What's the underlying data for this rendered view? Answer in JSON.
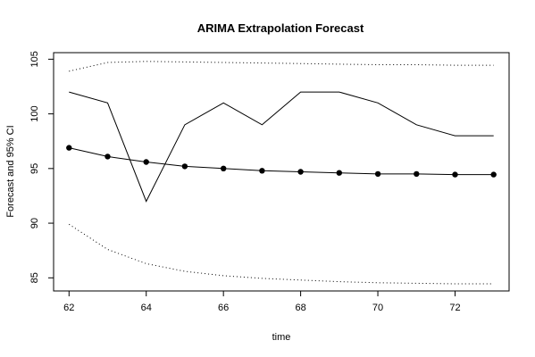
{
  "chart_data": {
    "type": "line",
    "title": "ARIMA Extrapolation Forecast",
    "xlabel": "time",
    "ylabel": "Forecast and 95% CI",
    "xlim": [
      61.6,
      73.4
    ],
    "ylim": [
      83.8,
      105.6
    ],
    "x_ticks": [
      62,
      64,
      66,
      68,
      70,
      72
    ],
    "y_ticks": [
      85,
      90,
      95,
      100,
      105
    ],
    "grid": false,
    "legend": "none",
    "x": [
      62,
      63,
      64,
      65,
      66,
      67,
      68,
      69,
      70,
      71,
      72,
      73
    ],
    "series": [
      {
        "role": "actual",
        "style": "solid",
        "values": [
          102,
          101,
          92,
          99,
          101,
          99,
          102,
          102,
          101,
          99,
          98,
          98
        ]
      },
      {
        "role": "forecast",
        "style": "dashed-with-points",
        "values": [
          96.9,
          96.1,
          95.6,
          95.2,
          95.0,
          94.8,
          94.7,
          94.6,
          94.5,
          94.5,
          94.45,
          94.45
        ]
      },
      {
        "role": "upper-95",
        "style": "dotted",
        "values": [
          103.9,
          104.7,
          104.8,
          104.75,
          104.7,
          104.65,
          104.6,
          104.55,
          104.5,
          104.5,
          104.45,
          104.45
        ]
      },
      {
        "role": "lower-95",
        "style": "dotted",
        "values": [
          89.9,
          87.6,
          86.3,
          85.6,
          85.2,
          84.95,
          84.8,
          84.65,
          84.55,
          84.5,
          84.45,
          84.45
        ]
      }
    ]
  }
}
